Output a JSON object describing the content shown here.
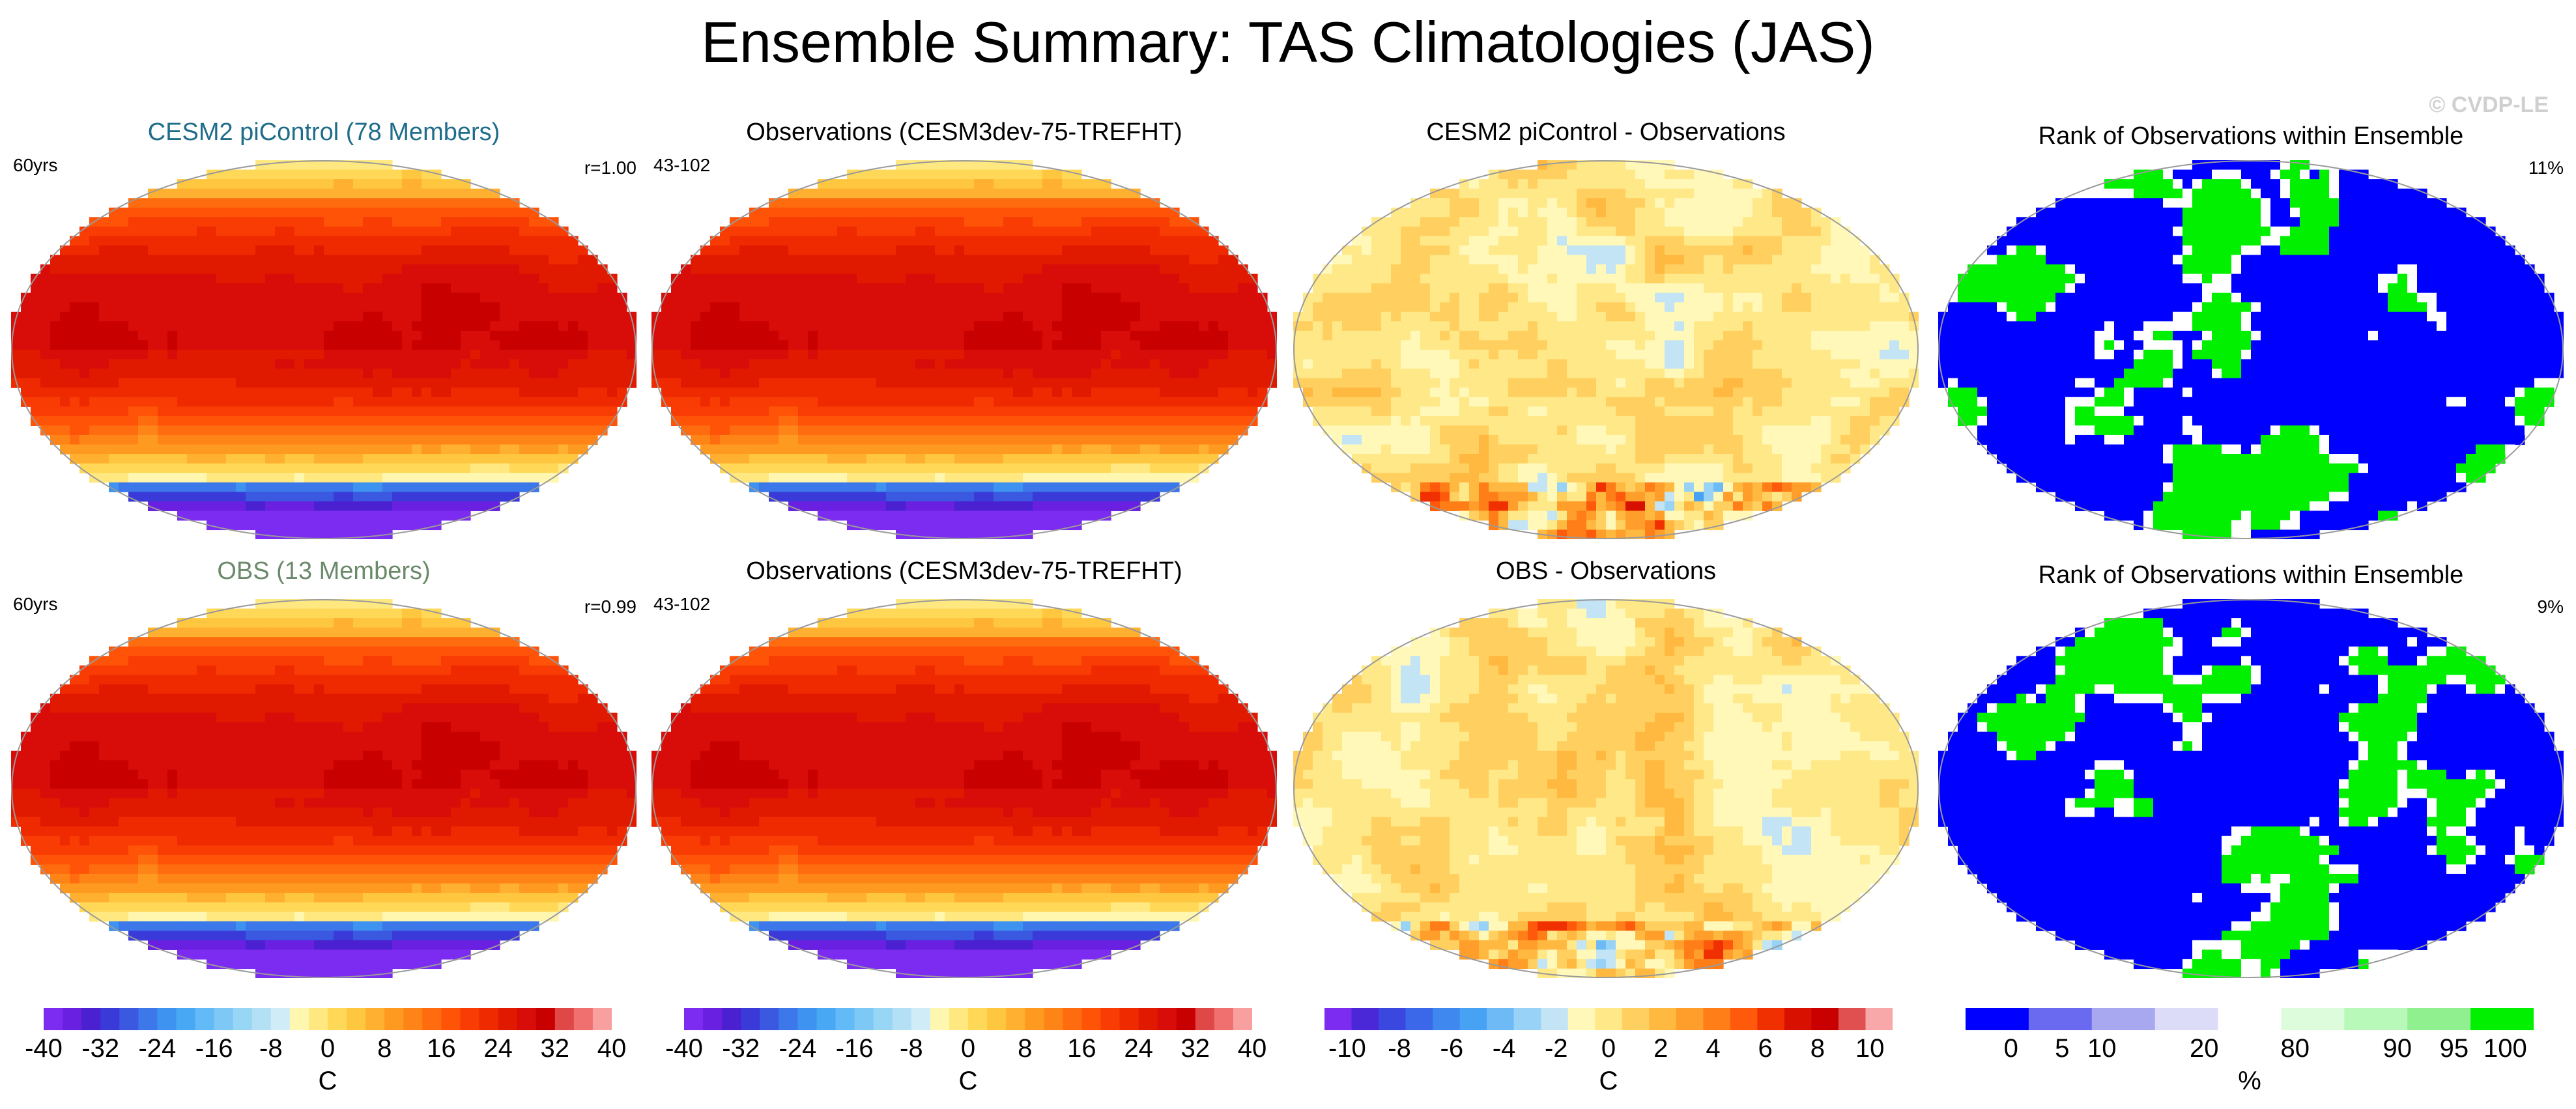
{
  "title": "Ensemble Summary: TAS Climatologies (JAS)",
  "watermark": "© CVDP-LE",
  "colors": {
    "ens1_title": "#1f6d8a",
    "ens2_title": "#6a8a6a"
  },
  "rows": [
    {
      "panels": [
        {
          "title": "CESM2 piControl (78 Members)",
          "left": "60yrs",
          "right": "r=1.00",
          "kind": "clim",
          "title_color": "#1f6d8a"
        },
        {
          "title": "Observations (CESM3dev-75-TREFHT)",
          "left": "43-102",
          "right": "",
          "kind": "clim"
        },
        {
          "title": "CESM2 piControl - Observations",
          "left": "",
          "right": "",
          "kind": "diff1"
        },
        {
          "title": "Rank of Observations within Ensemble",
          "left": "",
          "right": "11%",
          "kind": "rank1"
        }
      ]
    },
    {
      "panels": [
        {
          "title": "OBS (13 Members)",
          "left": "60yrs",
          "right": "r=0.99",
          "kind": "clim",
          "title_color": "#6a8a6a"
        },
        {
          "title": "Observations (CESM3dev-75-TREFHT)",
          "left": "43-102",
          "right": "",
          "kind": "clim"
        },
        {
          "title": "OBS - Observations",
          "left": "",
          "right": "",
          "kind": "diff2"
        },
        {
          "title": "Rank of Observations within Ensemble",
          "left": "",
          "right": "9%",
          "kind": "rank2"
        }
      ]
    }
  ],
  "colorbars": [
    {
      "ticks": [
        "-40",
        "-32",
        "-24",
        "-16",
        "-8",
        "0",
        "8",
        "16",
        "24",
        "32",
        "40"
      ],
      "unit": "C"
    },
    {
      "ticks": [
        "-40",
        "-32",
        "-24",
        "-16",
        "-8",
        "0",
        "8",
        "16",
        "24",
        "32",
        "40"
      ],
      "unit": "C"
    },
    {
      "ticks": [
        "-10",
        "-8",
        "-6",
        "-4",
        "-2",
        "0",
        "2",
        "4",
        "6",
        "8",
        "10"
      ],
      "unit": "C"
    },
    {
      "ticks": [
        "0",
        "5",
        "10",
        "20",
        "80",
        "90",
        "95",
        "100"
      ],
      "unit": "%"
    }
  ]
}
